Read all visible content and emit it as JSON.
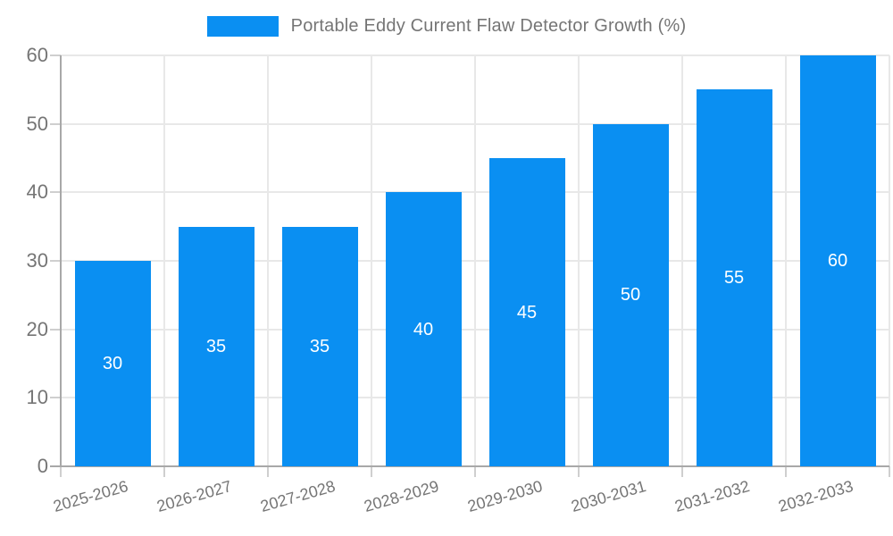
{
  "legend": {
    "label": "Portable Eddy Current Flaw Detector Growth (%)"
  },
  "chart_data": {
    "type": "bar",
    "title": "Portable Eddy Current Flaw Detector Growth (%)",
    "categories": [
      "2025-2026",
      "2026-2027",
      "2027-2028",
      "2028-2029",
      "2029-2030",
      "2030-2031",
      "2031-2032",
      "2032-2033"
    ],
    "values": [
      30,
      35,
      35,
      40,
      45,
      50,
      55,
      60
    ],
    "xlabel": "",
    "ylabel": "",
    "ylim": [
      0,
      60
    ],
    "yticks": [
      0,
      10,
      20,
      30,
      40,
      50,
      60
    ],
    "grid": true,
    "legend_position": "top-center",
    "bar_color": "#0a8ff2",
    "value_label_color": "#ffffff",
    "axis_text_color": "#757575"
  }
}
